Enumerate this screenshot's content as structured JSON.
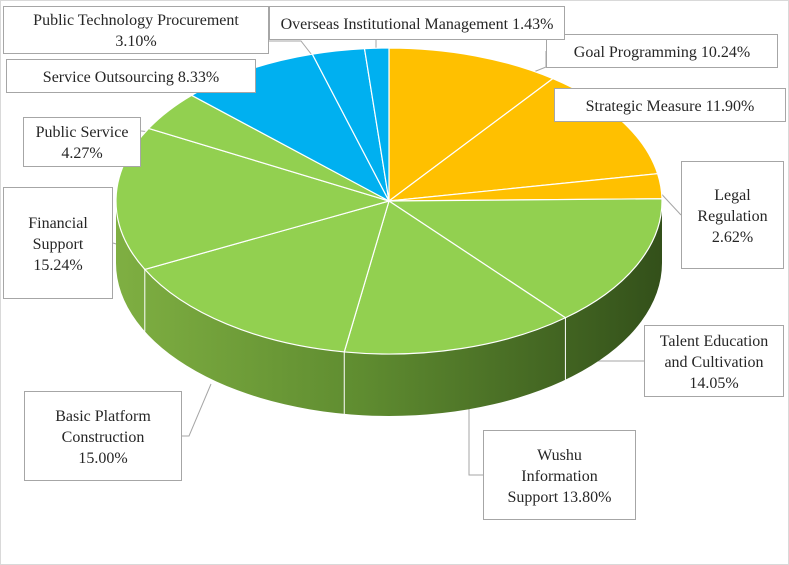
{
  "chart_data": {
    "type": "pie",
    "style": "3d-exploded-ellipse",
    "slices": [
      {
        "label": "Goal Programming",
        "value": 10.24,
        "text": "Goal Programming 10.24%",
        "color": "#FFC000"
      },
      {
        "label": "Strategic Measure",
        "value": 11.9,
        "text": "Strategic Measure 11.90%",
        "color": "#FFC000"
      },
      {
        "label": "Legal Regulation",
        "value": 2.62,
        "text": "Legal\nRegulation\n2.62%",
        "color": "#FFC000"
      },
      {
        "label": "Talent Education and Cultivation",
        "value": 14.05,
        "text": "Talent Education\nand Cultivation\n14.05%",
        "color": "#92D050"
      },
      {
        "label": "Wushu Information Support",
        "value": 13.8,
        "text": "Wushu\nInformation\nSupport 13.80%",
        "color": "#92D050"
      },
      {
        "label": "Basic Platform Construction",
        "value": 15.0,
        "text": "Basic Platform\nConstruction\n15.00%",
        "color": "#92D050"
      },
      {
        "label": "Financial Support",
        "value": 15.24,
        "text": "Financial\nSupport\n15.24%",
        "color": "#92D050"
      },
      {
        "label": "Public Service",
        "value": 4.27,
        "text": "Public Service\n4.27%",
        "color": "#92D050"
      },
      {
        "label": "Service Outsourcing",
        "value": 8.33,
        "text": "Service Outsourcing 8.33%",
        "color": "#00B0F0"
      },
      {
        "label": "Public Technology Procurement",
        "value": 3.1,
        "text": "Public Technology Procurement\n3.10%",
        "color": "#00B0F0"
      },
      {
        "label": "Overseas Institutional Management",
        "value": 1.43,
        "text": "Overseas Institutional Management 1.43%",
        "color": "#00B0F0"
      }
    ],
    "title": "",
    "legend": "none",
    "colors": {
      "side_dark": "#3E5E1F",
      "side_light": "#77A83B",
      "leader_line": "#A6A6A6"
    }
  }
}
